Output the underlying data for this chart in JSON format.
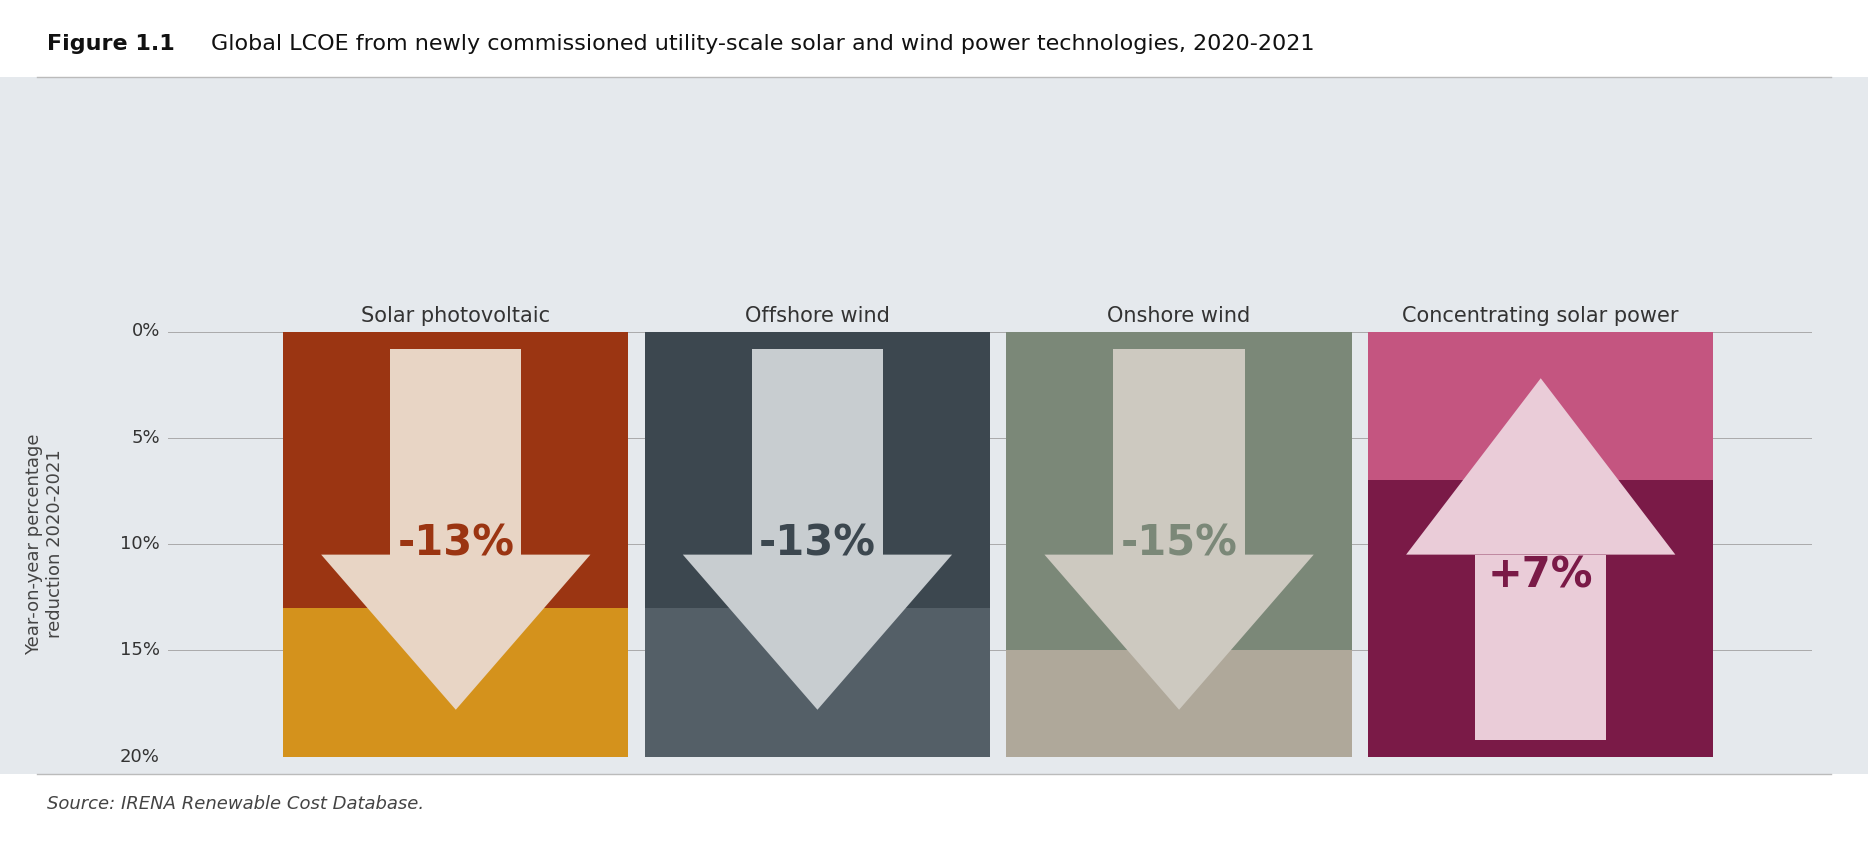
{
  "title_bold": "Figure 1.1",
  "title_regular": "  Global LCOE from newly commissioned utility-scale solar and wind power technologies, 2020-2021",
  "source": "Source: IRENA Renewable Cost Database.",
  "background_color": "#e5e9ed",
  "white_bg": "#ffffff",
  "categories": [
    "Solar photovoltaic",
    "Offshore wind",
    "Onshore wind",
    "Concentrating solar power"
  ],
  "values": [
    -13,
    -13,
    -15,
    7
  ],
  "labels": [
    "-13%",
    "-13%",
    "-15%",
    "+7%"
  ],
  "top_colors": [
    "#9b3512",
    "#3c474f",
    "#7b8878",
    "#c45580"
  ],
  "bottom_colors": [
    "#d4921c",
    "#545f67",
    "#afa89a",
    "#7a1a47"
  ],
  "arrow_colors": [
    "#e8d5c5",
    "#c8cdd0",
    "#cdc9c0",
    "#eaccd8"
  ],
  "text_colors": [
    "#9b3512",
    "#3c474f",
    "#7b8878",
    "#7a1a47"
  ],
  "ylabel": "Year-on-year percentage\nreduction 2020-2021",
  "yticks": [
    0,
    5,
    10,
    15,
    20
  ],
  "split_pct": [
    13,
    13,
    15,
    7
  ],
  "positions": [
    0.175,
    0.395,
    0.615,
    0.835
  ],
  "bar_half": 0.105
}
